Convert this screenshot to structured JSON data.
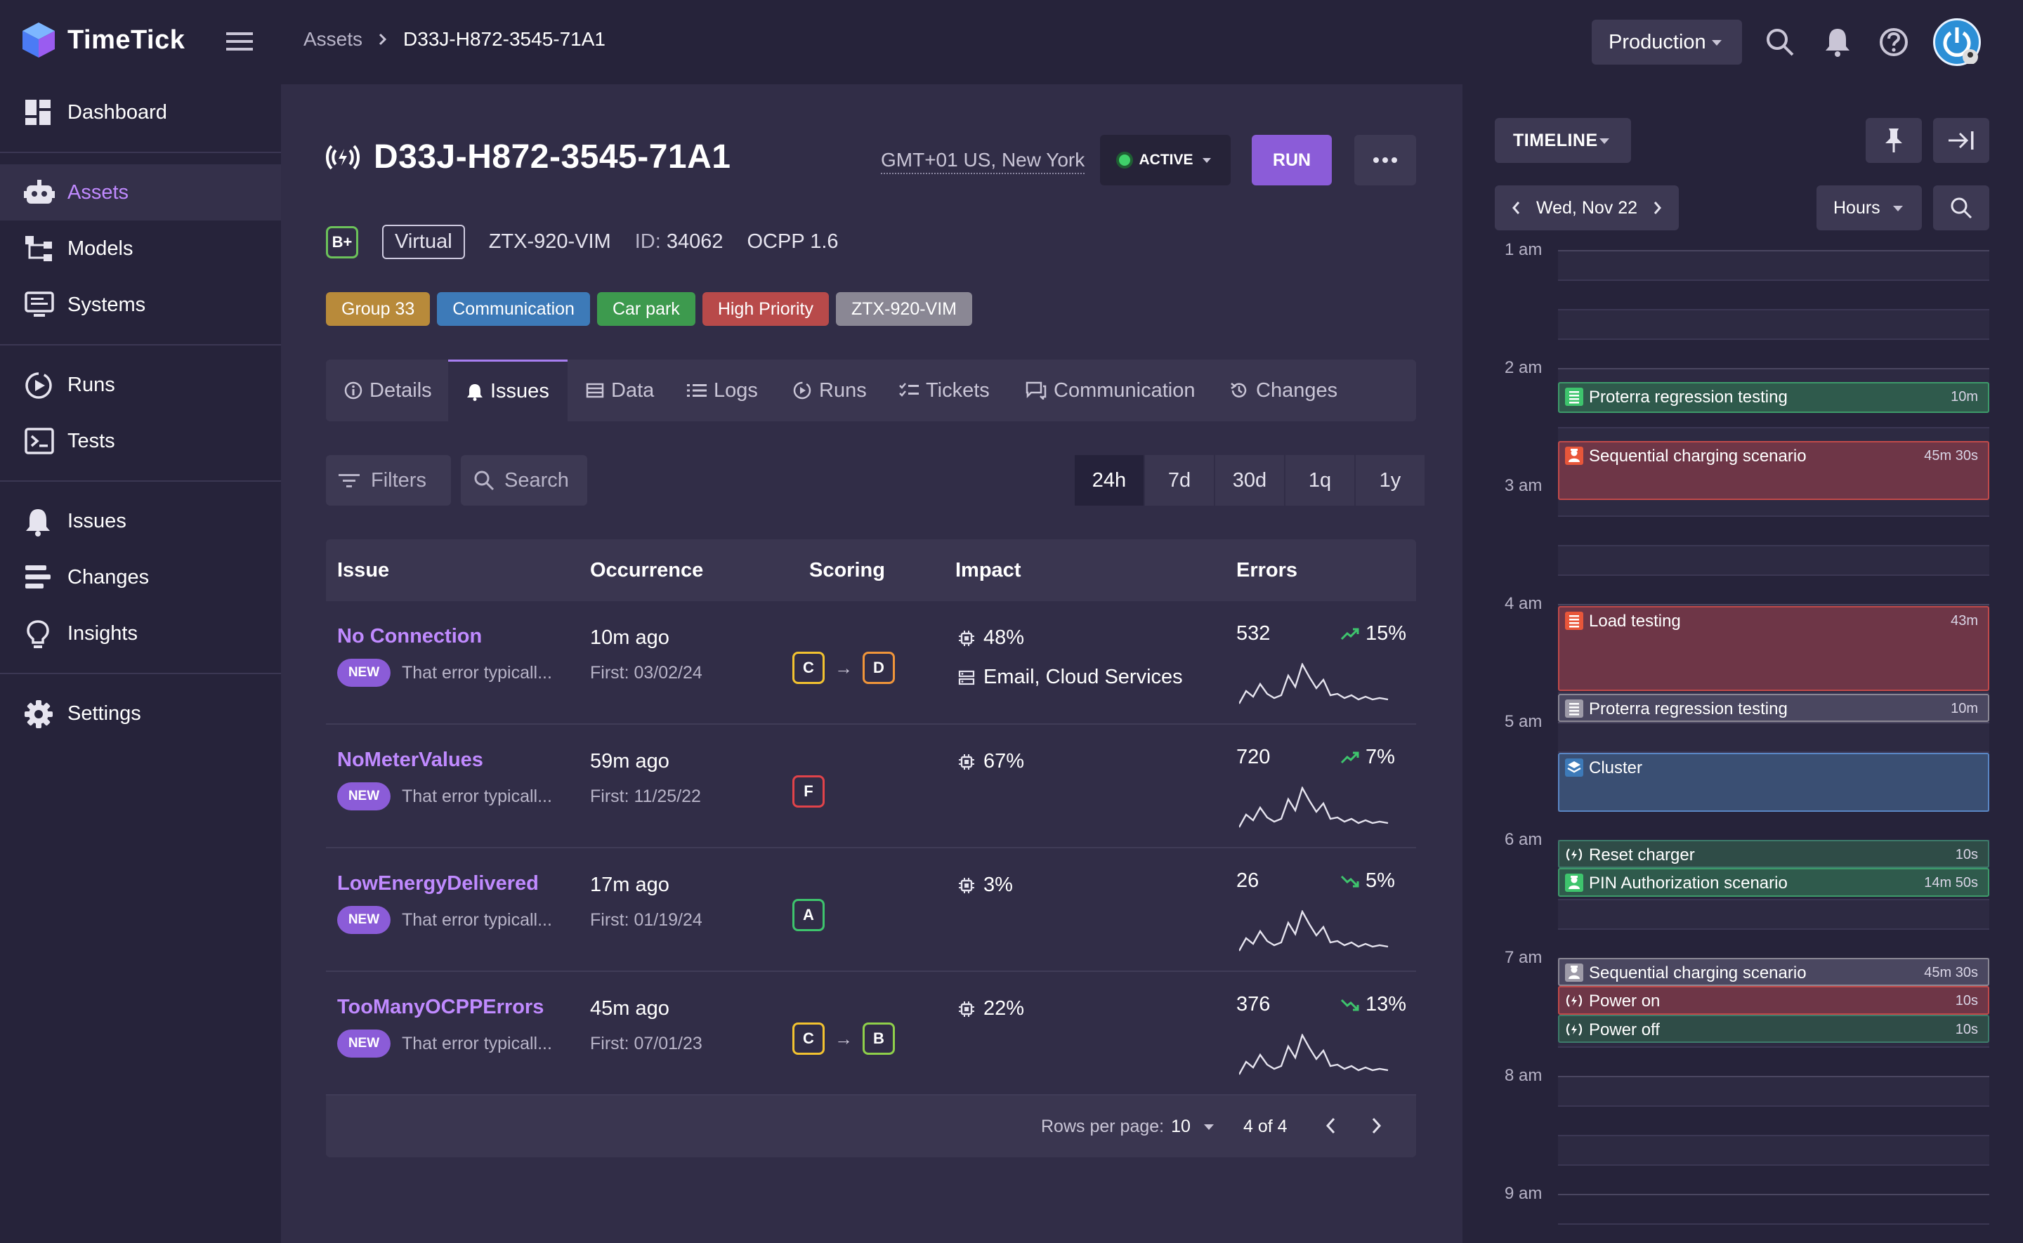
{
  "app": {
    "name": "TimeTick"
  },
  "breadcrumb": {
    "parent": "Assets",
    "current": "D33J-H872-3545-71A1"
  },
  "header": {
    "environment": "Production"
  },
  "sidebar": {
    "items": [
      {
        "label": "Dashboard"
      },
      {
        "label": "Assets"
      },
      {
        "label": "Models"
      },
      {
        "label": "Systems"
      },
      {
        "label": "Runs"
      },
      {
        "label": "Tests"
      },
      {
        "label": "Issues"
      },
      {
        "label": "Changes"
      },
      {
        "label": "Insights"
      },
      {
        "label": "Settings"
      }
    ],
    "active": "Assets"
  },
  "asset": {
    "title": "D33J-H872-3545-71A1",
    "timezone": "GMT+01 US, New York",
    "status": "ACTIVE",
    "run_label": "RUN",
    "grade": "B+",
    "type": "Virtual",
    "model": "ZTX-920-VIM",
    "id_label": "ID:",
    "id_value": "34062",
    "protocol": "OCPP 1.6",
    "tags": [
      {
        "label": "Group 33",
        "color": "#b88a3a"
      },
      {
        "label": "Communication",
        "color": "#3d7ab8"
      },
      {
        "label": "Car park",
        "color": "#3d9a4e"
      },
      {
        "label": "High Priority",
        "color": "#b84a4a"
      },
      {
        "label": "ZTX-920-VIM",
        "color": "#8a8794"
      }
    ]
  },
  "tabs": [
    {
      "label": "Details"
    },
    {
      "label": "Issues"
    },
    {
      "label": "Data"
    },
    {
      "label": "Logs"
    },
    {
      "label": "Runs"
    },
    {
      "label": "Tickets"
    },
    {
      "label": "Communication"
    },
    {
      "label": "Changes"
    }
  ],
  "toolbar": {
    "filters_label": "Filters",
    "search_label": "Search",
    "ranges": [
      "24h",
      "7d",
      "30d",
      "1q",
      "1y"
    ],
    "selected_range": "24h"
  },
  "table": {
    "columns": [
      "Issue",
      "Occurrence",
      "Scoring",
      "Impact",
      "Errors"
    ],
    "rows": [
      {
        "name": "No Connection",
        "badge": "NEW",
        "desc": "That error typicall...",
        "ago": "10m ago",
        "first": "First: 03/02/24",
        "scores": [
          "C",
          "D"
        ],
        "impact": "48%",
        "impact_extra": "Email, Cloud Services",
        "errors": "532",
        "trend": "15%",
        "trend_dir": "up"
      },
      {
        "name": "NoMeterValues",
        "badge": "NEW",
        "desc": "That error typicall...",
        "ago": "59m ago",
        "first": "First: 11/25/22",
        "scores": [
          "F"
        ],
        "impact": "67%",
        "impact_extra": "",
        "errors": "720",
        "trend": "7%",
        "trend_dir": "up"
      },
      {
        "name": "LowEnergyDelivered",
        "badge": "NEW",
        "desc": "That error typicall...",
        "ago": "17m ago",
        "first": "First: 01/19/24",
        "scores": [
          "A"
        ],
        "impact": "3%",
        "impact_extra": "",
        "errors": "26",
        "trend": "5%",
        "trend_dir": "down"
      },
      {
        "name": "TooManyOCPPErrors",
        "badge": "NEW",
        "desc": "That error typicall...",
        "ago": "45m ago",
        "first": "First: 07/01/23",
        "scores": [
          "C",
          "B"
        ],
        "impact": "22%",
        "impact_extra": "",
        "errors": "376",
        "trend": "13%",
        "trend_dir": "down"
      }
    ],
    "score_colors": {
      "A": "#3ec46d",
      "B": "#8fcf4a",
      "C": "#f2c230",
      "D": "#f0953a",
      "F": "#e0434a"
    },
    "rows_per_page_label": "Rows per page:",
    "rows_per_page": "10",
    "page_info": "4 of 4"
  },
  "timeline": {
    "label": "TIMELINE",
    "date": "Wed, Nov 22",
    "scale": "Hours",
    "hours": [
      "1 am",
      "2 am",
      "3 am",
      "4 am",
      "5 am",
      "6 am",
      "7 am",
      "8 am",
      "9 am"
    ],
    "events": [
      {
        "name": "Proterra regression testing",
        "duration": "10m",
        "start_hour": 2.12,
        "length_hours": 0.26,
        "color": "#2f5a4c",
        "border": "#3d9a6a",
        "icon": "list-icon",
        "icon_color": "#3ec46d"
      },
      {
        "name": "Sequential charging scenario",
        "duration": "45m 30s",
        "start_hour": 2.62,
        "length_hours": 0.5,
        "color": "#6e3647",
        "border": "#c04a4a",
        "icon": "person-icon",
        "icon_color": "#e8563a"
      },
      {
        "name": "Load testing",
        "duration": "43m",
        "start_hour": 4.02,
        "length_hours": 0.72,
        "color": "#6e3647",
        "border": "#c04a4a",
        "icon": "list-icon",
        "icon_color": "#e8563a"
      },
      {
        "name": "Proterra regression testing",
        "duration": "10m",
        "start_hour": 4.76,
        "length_hours": 0.24,
        "color": "#4a4760",
        "border": "#8a8794",
        "icon": "list-icon",
        "icon_color": "#9e9ba8"
      },
      {
        "name": "Cluster",
        "duration": "",
        "start_hour": 5.26,
        "length_hours": 0.5,
        "color": "#3a4f73",
        "border": "#5a86c4",
        "icon": "cluster-icon",
        "icon_color": "#3d7ab8"
      },
      {
        "name": "Reset charger",
        "duration": "10s",
        "start_hour": 6.0,
        "length_hours": 0.24,
        "color": "#2f4c47",
        "border": "#3d7a6a",
        "icon": "charger-icon",
        "icon_color": "#2f4c47"
      },
      {
        "name": "PIN Authorization scenario",
        "duration": "14m 50s",
        "start_hour": 6.24,
        "length_hours": 0.24,
        "color": "#2f5a4c",
        "border": "#3d9a6a",
        "icon": "person-icon",
        "icon_color": "#3ec46d"
      },
      {
        "name": "Sequential charging scenario",
        "duration": "45m 30s",
        "start_hour": 7.0,
        "length_hours": 0.24,
        "color": "#4a4760",
        "border": "#8a8794",
        "icon": "person-icon",
        "icon_color": "#9e9ba8"
      },
      {
        "name": "Power on",
        "duration": "10s",
        "start_hour": 7.24,
        "length_hours": 0.24,
        "color": "#6e3647",
        "border": "#c04a4a",
        "icon": "charger-icon",
        "icon_color": "#6e3647"
      },
      {
        "name": "Power off",
        "duration": "10s",
        "start_hour": 7.48,
        "length_hours": 0.24,
        "color": "#2f4c47",
        "border": "#3d7a6a",
        "icon": "charger-icon",
        "icon_color": "#2f4c47"
      }
    ]
  }
}
